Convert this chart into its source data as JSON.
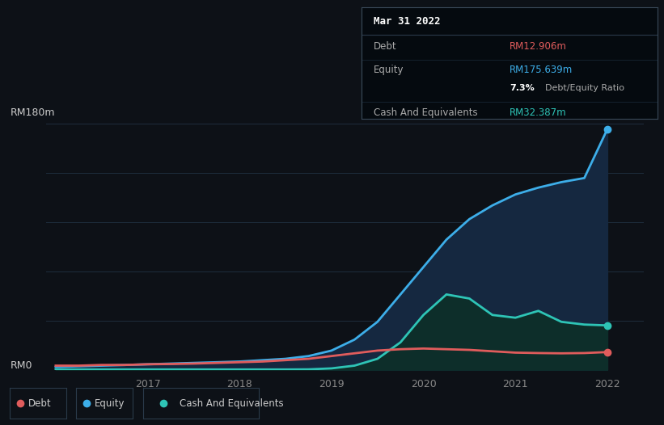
{
  "background_color": "#0d1117",
  "plot_bg_color": "#0d1117",
  "y_label_top": "RM180m",
  "y_label_bottom": "RM0",
  "x_ticks": [
    "2017",
    "2018",
    "2019",
    "2020",
    "2021",
    "2022"
  ],
  "tooltip": {
    "date": "Mar 31 2022",
    "debt_label": "Debt",
    "debt_value": "RM12.906m",
    "equity_label": "Equity",
    "equity_value": "RM175.639m",
    "ratio_value": "7.3%",
    "ratio_label": "Debt/Equity Ratio",
    "cash_label": "Cash And Equivalents",
    "cash_value": "RM32.387m"
  },
  "equity_color": "#3daee9",
  "debt_color": "#e05c5c",
  "cash_color": "#2ec4b6",
  "equity_fill": "#152840",
  "cash_fill": "#0d2e2a",
  "grid_color": "#1e2d3d",
  "tooltip_bg": "#050a0f",
  "time_x": [
    0.0,
    0.25,
    0.5,
    0.75,
    1.0,
    1.25,
    1.5,
    1.75,
    2.0,
    2.25,
    2.5,
    2.75,
    3.0,
    3.25,
    3.5,
    3.75,
    4.0,
    4.25,
    4.5,
    4.75,
    5.0,
    5.25,
    5.5,
    5.75,
    6.0
  ],
  "equity_y": [
    2,
    2.5,
    3,
    3.5,
    4,
    4.5,
    5,
    5.5,
    6,
    7,
    8,
    10,
    14,
    22,
    35,
    55,
    75,
    95,
    110,
    120,
    128,
    133,
    137,
    140,
    175.639
  ],
  "debt_y": [
    3,
    3,
    3.5,
    3.5,
    4,
    4.2,
    4.5,
    5,
    5.5,
    6,
    7,
    8,
    10,
    12,
    14,
    15,
    15.5,
    15,
    14.5,
    13.5,
    12.5,
    12.2,
    12,
    12.2,
    12.906
  ],
  "cash_y": [
    0.2,
    0.2,
    0.2,
    0.2,
    0.2,
    0.2,
    0.2,
    0.2,
    0.2,
    0.2,
    0.2,
    0.3,
    1.0,
    3,
    8,
    20,
    40,
    55,
    52,
    40,
    38,
    43,
    35,
    33,
    32.387
  ],
  "ylim": [
    0,
    180
  ],
  "xlim": [
    -0.1,
    6.4
  ],
  "legend": [
    {
      "label": "Debt",
      "color": "#e05c5c"
    },
    {
      "label": "Equity",
      "color": "#3daee9"
    },
    {
      "label": "Cash And Equivalents",
      "color": "#2ec4b6"
    }
  ]
}
